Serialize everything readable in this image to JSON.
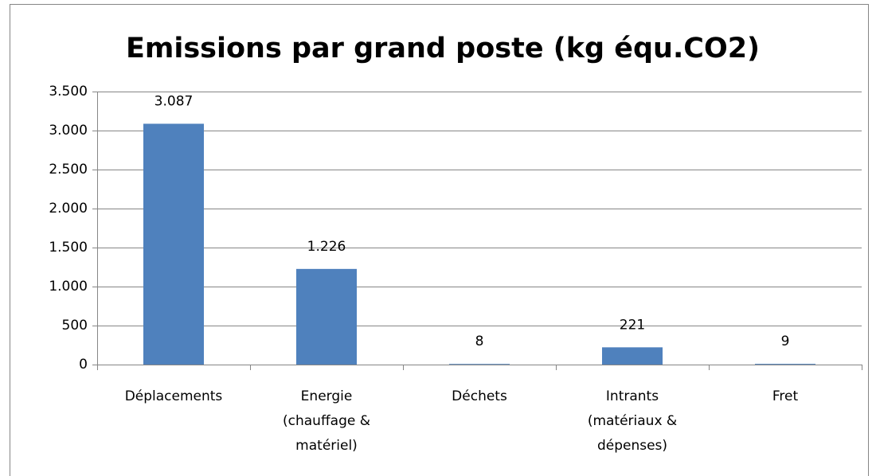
{
  "chart_data": {
    "type": "bar",
    "title": "Emissions par grand poste (kg équ.CO2)",
    "categories": [
      "Déplacements",
      "Energie (chauffage & matériel)",
      "Déchets",
      "Intrants (matériaux & dépenses)",
      "Fret"
    ],
    "values": [
      3087,
      1226,
      8,
      221,
      9
    ],
    "value_labels": [
      "3.087",
      "1.226",
      "8",
      "221",
      "9"
    ],
    "color": "#4f81bd",
    "ylim": [
      0,
      3500
    ],
    "yticks": [
      0,
      500,
      {
        "value": 1000,
        "label": "1.000"
      },
      {
        "value": 1500,
        "label": "1.500"
      },
      {
        "value": 2000,
        "label": "2.000"
      },
      {
        "value": 2500,
        "label": "2.500"
      },
      {
        "value": 3000,
        "label": "3.000"
      },
      {
        "value": 3500,
        "label": "3.500"
      }
    ],
    "grid": true
  }
}
